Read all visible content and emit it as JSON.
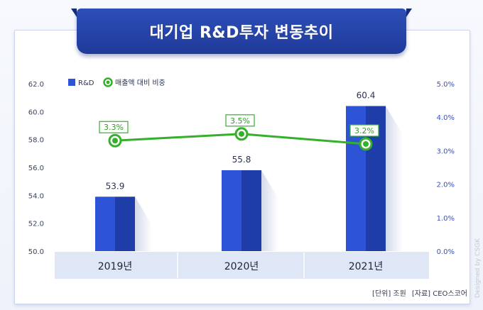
{
  "title": "대기업 R&D투자 변동추이",
  "credit": "Designed by CSGK",
  "source": {
    "unit": "[단위] 조원",
    "data": "[자료] CEO스코어"
  },
  "colors": {
    "bar_front": "#2d54d6",
    "bar_side": "#1f3da8",
    "line": "#35b02a",
    "ribbon": "#2544a8",
    "axis_band": "#dfe6f6"
  },
  "chart_data": {
    "type": "bar",
    "categories": [
      "2019년",
      "2020년",
      "2021년"
    ],
    "series": [
      {
        "name": "R&D",
        "type": "bar",
        "axis": "left",
        "values": [
          53.9,
          55.8,
          60.4
        ],
        "labels": [
          "53.9",
          "55.8",
          "60.4"
        ]
      },
      {
        "name": "매출액 대비 비중",
        "type": "line",
        "axis": "right",
        "values": [
          3.3,
          3.5,
          3.2
        ],
        "labels": [
          "3.3%",
          "3.5%",
          "3.2%"
        ]
      }
    ],
    "y_left": {
      "ylim": [
        50.0,
        62.0
      ],
      "ticks": [
        "50.0",
        "52.0",
        "54.0",
        "56.0",
        "58.0",
        "60.0",
        "62.0"
      ]
    },
    "y_right": {
      "ylim": [
        0.0,
        5.0
      ],
      "ticks": [
        "0.0%",
        "1.0%",
        "2.0%",
        "3.0%",
        "4.0%",
        "5.0%"
      ]
    },
    "legend": "top-left",
    "grid": false
  }
}
